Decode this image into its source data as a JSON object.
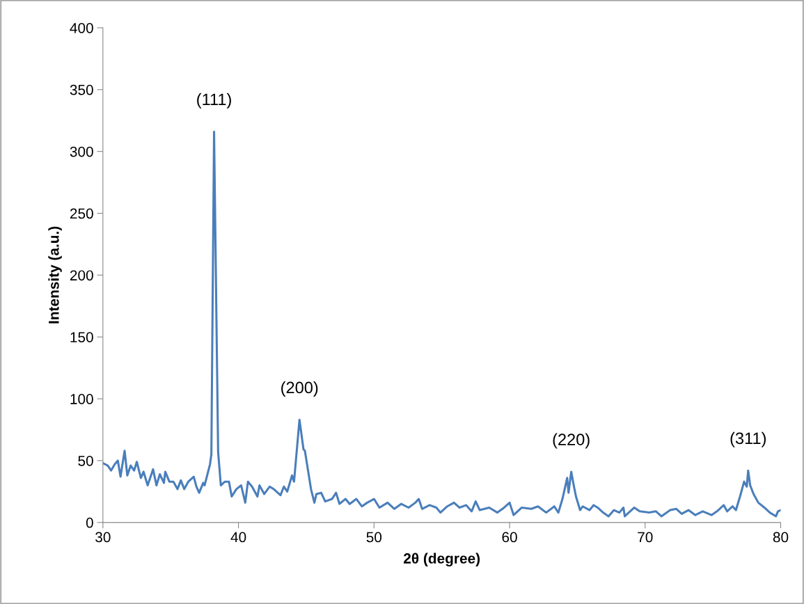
{
  "chart_data": {
    "type": "line",
    "xlabel": "2θ (degree)",
    "ylabel": "Intensity (a.u.)",
    "xlim": [
      30,
      80
    ],
    "xticks": [
      30,
      40,
      50,
      60,
      70,
      80
    ],
    "ylim": [
      0,
      400
    ],
    "yticks": [
      0,
      50,
      100,
      150,
      200,
      250,
      300,
      350,
      400
    ],
    "grid": false,
    "legend": false,
    "marker": "none",
    "line_style": "solid",
    "annotations": [
      {
        "text": "(111)",
        "x": 38.2,
        "y": 316
      },
      {
        "text": "(200)",
        "x": 44.5,
        "y": 83
      },
      {
        "text": "(220)",
        "x": 64.55,
        "y": 41
      },
      {
        "text": "(311)",
        "x": 77.6,
        "y": 42
      }
    ],
    "series": [
      {
        "color": "#4a7ebb",
        "x": [
          30.0,
          30.36,
          30.6,
          30.87,
          31.1,
          31.3,
          31.6,
          31.8,
          32.05,
          32.3,
          32.5,
          32.8,
          33.0,
          33.3,
          33.7,
          33.95,
          34.2,
          34.5,
          34.6,
          34.9,
          35.2,
          35.5,
          35.75,
          36.0,
          36.3,
          36.7,
          36.9,
          37.1,
          37.4,
          37.5,
          37.9,
          38.0,
          38.2,
          38.5,
          38.7,
          39.0,
          39.3,
          39.5,
          39.85,
          40.2,
          40.5,
          40.7,
          41.0,
          41.4,
          41.55,
          41.9,
          42.3,
          42.6,
          43.1,
          43.35,
          43.6,
          43.95,
          44.1,
          44.5,
          44.8,
          44.9,
          45.35,
          45.6,
          45.75,
          46.1,
          46.4,
          46.9,
          47.2,
          47.45,
          47.9,
          48.2,
          48.7,
          49.1,
          49.5,
          50.0,
          50.4,
          51.0,
          51.5,
          52.0,
          52.55,
          53.05,
          53.3,
          53.55,
          54.1,
          54.6,
          54.9,
          55.4,
          55.9,
          56.3,
          56.8,
          57.2,
          57.5,
          57.8,
          58.5,
          59.1,
          59.6,
          60.0,
          60.3,
          60.9,
          61.6,
          62.1,
          62.7,
          63.3,
          63.6,
          63.9,
          64.25,
          64.35,
          64.55,
          64.75,
          64.9,
          65.2,
          65.4,
          65.9,
          66.2,
          66.5,
          66.9,
          67.3,
          67.7,
          68.1,
          68.4,
          68.5,
          69.2,
          69.6,
          70.3,
          70.8,
          71.2,
          71.85,
          72.3,
          72.7,
          73.2,
          73.7,
          74.25,
          74.9,
          75.3,
          75.8,
          76.05,
          76.45,
          76.7,
          77.0,
          77.3,
          77.5,
          77.6,
          77.75,
          78.0,
          78.35,
          78.8,
          79.2,
          79.65,
          79.8,
          80.0
        ],
        "values": [
          48,
          46,
          42,
          47,
          50,
          37,
          58,
          38,
          46,
          42,
          49,
          36,
          41,
          30,
          43,
          30,
          39,
          32,
          41,
          33,
          33,
          27,
          34,
          27,
          33,
          37,
          29,
          24,
          32,
          30,
          47,
          55,
          316,
          57,
          30,
          33,
          33,
          21,
          27,
          30,
          16,
          33,
          29,
          21,
          30,
          23,
          29,
          27,
          22,
          29,
          25,
          38,
          33,
          83,
          59,
          58,
          27,
          16,
          23,
          24,
          17,
          19,
          24,
          15,
          19,
          15,
          19,
          13,
          16,
          19,
          12,
          16,
          11,
          15,
          12,
          16,
          19,
          11,
          14,
          12,
          8,
          13,
          16,
          12,
          14,
          9,
          17,
          10,
          12,
          8,
          12,
          16,
          6,
          12,
          11,
          13,
          8,
          13,
          8,
          19,
          36,
          24,
          41,
          29,
          21,
          10,
          13,
          10,
          14,
          12,
          8,
          5,
          10,
          8,
          12,
          5,
          12,
          9,
          8,
          9,
          5,
          10,
          11,
          7,
          10,
          6,
          9,
          6,
          9,
          14,
          9,
          13,
          10,
          21,
          33,
          29,
          42,
          30,
          23,
          16,
          12,
          8,
          5,
          9,
          10
        ]
      }
    ]
  }
}
